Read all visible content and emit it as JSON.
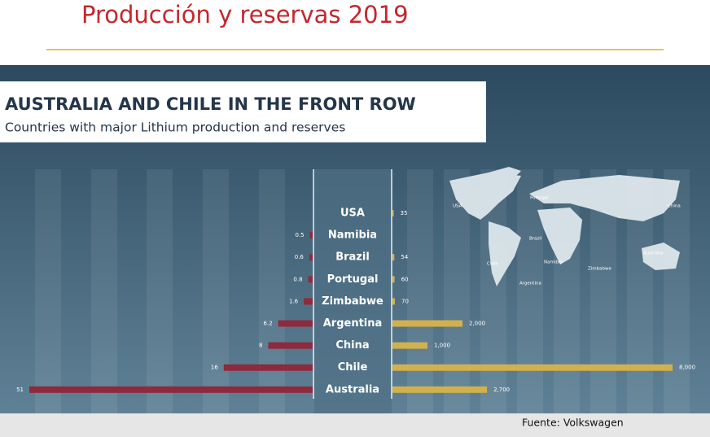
{
  "slide": {
    "title": "Producción y reservas 2019",
    "source": "Fuente: Volkswagen"
  },
  "chart_data": {
    "type": "butterfly-bar",
    "title": "AUSTRALIA AND CHILE IN THE FRONT ROW",
    "subtitle": "Countries with major Lithium production and reserves",
    "categories": [
      "USA",
      "Namibia",
      "Brazil",
      "Portugal",
      "Zimbabwe",
      "Argentina",
      "China",
      "Chile",
      "Australia"
    ],
    "series": [
      {
        "color": "#8e2a3e",
        "values": [
          null,
          0.5,
          0.6,
          0.8,
          1.6,
          6.2,
          8,
          16,
          51
        ]
      },
      {
        "color": "#d2b04c",
        "values": [
          35,
          null,
          54,
          60,
          70,
          2000,
          1000,
          8000,
          2700
        ],
        "value_labels": [
          "35",
          null,
          "54",
          "60",
          "70",
          "2,000",
          "1,000",
          "8,000",
          "2,700"
        ]
      }
    ],
    "map_labels": [
      "USA",
      "Portugal",
      "China",
      "Brazil",
      "Chile",
      "Namibia",
      "Zimbabwe",
      "Australia",
      "Argentina"
    ]
  }
}
